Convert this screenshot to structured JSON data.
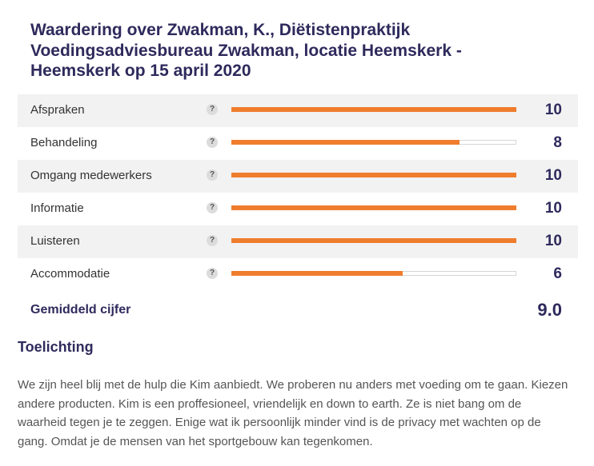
{
  "title": "Waardering over Zwakman, K., Diëtistenpraktijk Voedingsadviesbureau Zwakman, locatie Heemskerk - Heemskerk op 15 april 2020",
  "help_icon_symbol": "?",
  "bar_colors": {
    "fill": "#ef7d2d",
    "track": "#ffffff",
    "track_border": "#d6d6d6"
  },
  "ratings": [
    {
      "label": "Afspraken",
      "score": "10",
      "value": 10,
      "max": 10
    },
    {
      "label": "Behandeling",
      "score": "8",
      "value": 8,
      "max": 10
    },
    {
      "label": "Omgang medewerkers",
      "score": "10",
      "value": 10,
      "max": 10
    },
    {
      "label": "Informatie",
      "score": "10",
      "value": 10,
      "max": 10
    },
    {
      "label": "Luisteren",
      "score": "10",
      "value": 10,
      "max": 10
    },
    {
      "label": "Accommodatie",
      "score": "6",
      "value": 6,
      "max": 10
    }
  ],
  "average": {
    "label": "Gemiddeld cijfer",
    "score": "9.0"
  },
  "explanation": {
    "heading": "Toelichting",
    "text": "We zijn heel blij met de hulp die Kim aanbiedt. We proberen nu anders met voeding om te gaan. Kiezen andere producten. Kim is een proffesioneel, vriendelijk en down to earth. Ze is niet bang om de waarheid tegen je te zeggen. Enige wat ik persoonlijk minder vind is de privacy met wachten op de gang. Omdat je de mensen van het sportgebouw kan tegenkomen."
  }
}
